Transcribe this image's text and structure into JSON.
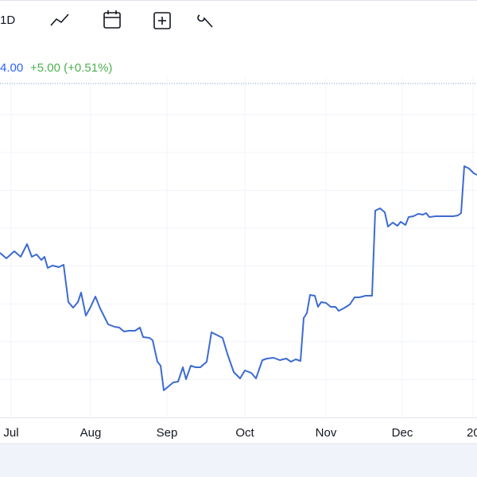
{
  "toolbar": {
    "interval": "1D"
  },
  "quote": {
    "price": "4.00",
    "change": "+5.00 (+0.51%)"
  },
  "chart_data": {
    "type": "line",
    "x": [
      0,
      8,
      18,
      26,
      34,
      40,
      46,
      52,
      56,
      60,
      66,
      74,
      80,
      86,
      92,
      98,
      102,
      108,
      114,
      120,
      126,
      136,
      144,
      150,
      156,
      162,
      170,
      176,
      180,
      188,
      192,
      198,
      202,
      206,
      212,
      218,
      224,
      230,
      234,
      240,
      246,
      252,
      260,
      266,
      272,
      280,
      286,
      294,
      302,
      308,
      316,
      322,
      330,
      336,
      344,
      352,
      360,
      366,
      372,
      378,
      382,
      386,
      390,
      396,
      400,
      404,
      410,
      416,
      422,
      426,
      432,
      440,
      446,
      452,
      460,
      468,
      472,
      478,
      484,
      488,
      494,
      500,
      504,
      510,
      514,
      520,
      526,
      532,
      536,
      540,
      548,
      556,
      564,
      570,
      576,
      580,
      584,
      590,
      596,
      600
    ],
    "series": [
      {
        "color": "#3c6bd1",
        "values": [
          207,
          200,
          209,
          202,
          218,
          202,
          205,
          198,
          202,
          188,
          191,
          189,
          192,
          145,
          138,
          145,
          157,
          128,
          139,
          152,
          137,
          117,
          114,
          113,
          108,
          109,
          109,
          113,
          101,
          100,
          97,
          70,
          65,
          34,
          39,
          44,
          45,
          63,
          48,
          65,
          63,
          63,
          70,
          107,
          104,
          100,
          80,
          57,
          49,
          59,
          56,
          49,
          72,
          74,
          75,
          72,
          74,
          70,
          73,
          71,
          125,
          131,
          154,
          153,
          139,
          145,
          144,
          139,
          139,
          134,
          137,
          142,
          151,
          151,
          153,
          153,
          260,
          263,
          258,
          240,
          245,
          241,
          246,
          242,
          252,
          253,
          256,
          255,
          257,
          252,
          253,
          253,
          253,
          253,
          254,
          257,
          316,
          313,
          307,
          305
        ]
      }
    ],
    "xlim": [
      0,
      600
    ],
    "ylim": [
      0,
      428
    ],
    "xticks": [
      {
        "value": 14,
        "label": "Jul"
      },
      {
        "value": 114,
        "label": "Aug"
      },
      {
        "value": 210,
        "label": "Sep"
      },
      {
        "value": 308,
        "label": "Oct"
      },
      {
        "value": 410,
        "label": "Nov"
      },
      {
        "value": 506,
        "label": "Dec"
      },
      {
        "value": 595,
        "label": "20"
      }
    ],
    "grid": true
  }
}
